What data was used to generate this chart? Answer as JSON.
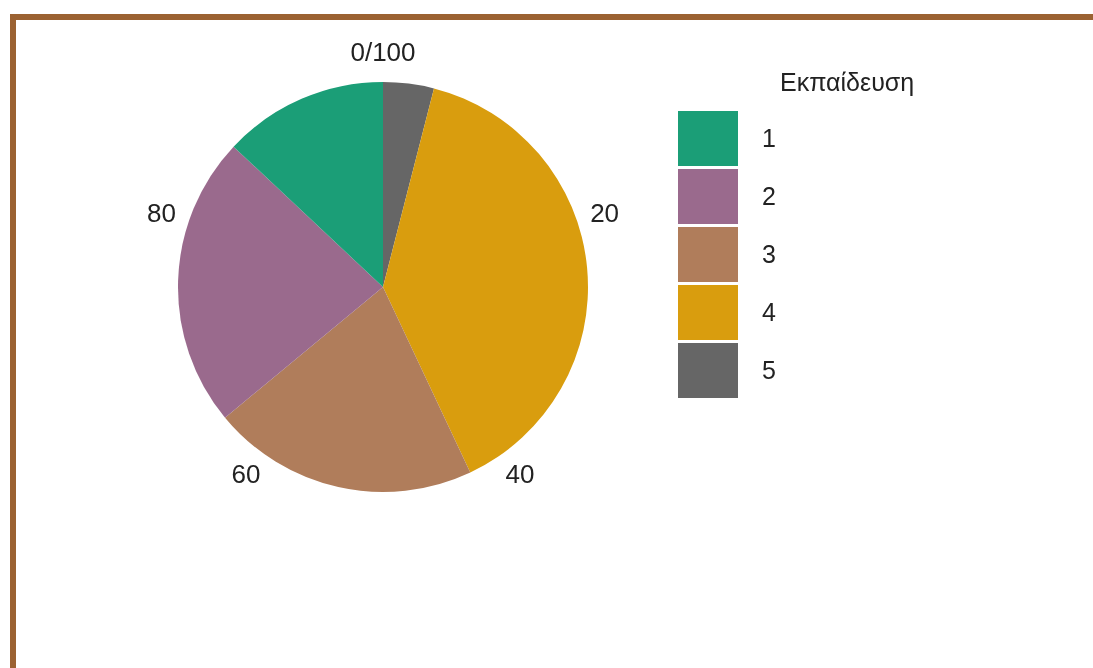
{
  "chart_data": {
    "type": "pie",
    "legend_title": "Εκπαίδευση",
    "legend": "right",
    "categories": [
      "1",
      "2",
      "3",
      "4",
      "5"
    ],
    "values": [
      13,
      23,
      21,
      39,
      4
    ],
    "colors": [
      "#1b9e77",
      "#9a6a8d",
      "#b07d5b",
      "#d99d0e",
      "#666666"
    ],
    "annotations": [
      "0/100",
      "20",
      "40",
      "60",
      "80"
    ]
  }
}
